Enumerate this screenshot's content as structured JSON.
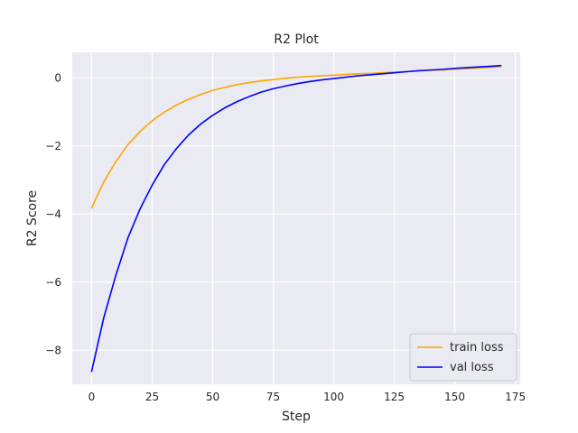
{
  "chart_data": {
    "type": "line",
    "title": "R2 Plot",
    "xlabel": "Step",
    "ylabel": "R2 Score",
    "xlim": [
      -8,
      177
    ],
    "ylim": [
      -9.0,
      0.75
    ],
    "xticks": [
      0,
      25,
      50,
      75,
      100,
      125,
      150,
      175
    ],
    "yticks": [
      -8,
      -6,
      -4,
      -2,
      0
    ],
    "grid": true,
    "legend_position": "lower-right",
    "series": [
      {
        "name": "train loss",
        "color": "#ffa500",
        "x": [
          0,
          5,
          10,
          15,
          20,
          25,
          30,
          35,
          40,
          45,
          50,
          55,
          60,
          65,
          70,
          75,
          80,
          85,
          90,
          95,
          100,
          105,
          110,
          115,
          120,
          125,
          130,
          135,
          140,
          145,
          150,
          155,
          160,
          165,
          169
        ],
        "y": [
          -3.82,
          -3.06,
          -2.46,
          -1.96,
          -1.58,
          -1.26,
          -1.01,
          -0.8,
          -0.63,
          -0.49,
          -0.37,
          -0.28,
          -0.2,
          -0.14,
          -0.09,
          -0.05,
          -0.01,
          0.02,
          0.04,
          0.06,
          0.08,
          0.1,
          0.12,
          0.13,
          0.15,
          0.17,
          0.18,
          0.2,
          0.22,
          0.23,
          0.25,
          0.27,
          0.29,
          0.31,
          0.33
        ]
      },
      {
        "name": "val loss",
        "color": "#0000ff",
        "x": [
          0,
          5,
          10,
          15,
          20,
          25,
          30,
          35,
          40,
          45,
          50,
          55,
          60,
          65,
          70,
          75,
          80,
          85,
          90,
          95,
          100,
          105,
          110,
          115,
          120,
          125,
          130,
          135,
          140,
          145,
          150,
          155,
          160,
          165,
          169
        ],
        "y": [
          -8.62,
          -7.05,
          -5.8,
          -4.7,
          -3.85,
          -3.15,
          -2.55,
          -2.08,
          -1.68,
          -1.36,
          -1.1,
          -0.88,
          -0.7,
          -0.55,
          -0.42,
          -0.32,
          -0.24,
          -0.17,
          -0.11,
          -0.06,
          -0.02,
          0.02,
          0.06,
          0.09,
          0.12,
          0.15,
          0.18,
          0.21,
          0.23,
          0.25,
          0.28,
          0.3,
          0.32,
          0.34,
          0.36
        ]
      }
    ]
  }
}
